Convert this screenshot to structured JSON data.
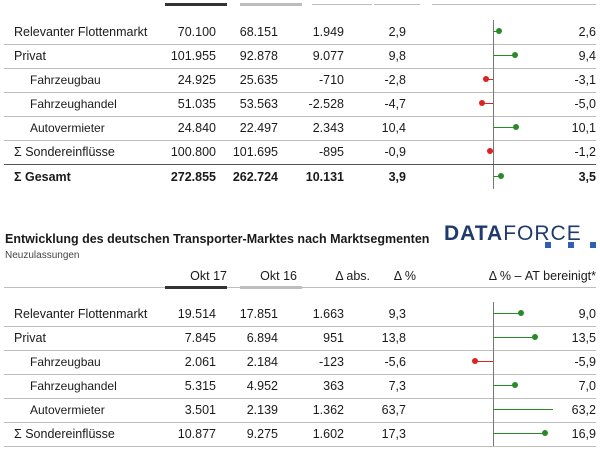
{
  "colors": {
    "positive": "#2a8a2a",
    "negative": "#dd2222",
    "rule_dark": "#333333",
    "rule_light": "#bdbdbd",
    "brand": "#1f3a6b"
  },
  "table1": {
    "rows": [
      {
        "label": "Relevanter Flottenmarkt",
        "indent": false,
        "bold": false,
        "v1": "70.100",
        "v2": "68.151",
        "abs": "1.949",
        "pct": "2,9",
        "adj": "2,6",
        "adj_val": 2.6,
        "pct_val": 2.9
      },
      {
        "label": "Privat",
        "indent": false,
        "bold": false,
        "v1": "101.955",
        "v2": "92.878",
        "abs": "9.077",
        "pct": "9,8",
        "adj": "9,4",
        "adj_val": 9.4,
        "pct_val": 9.8
      },
      {
        "label": "Fahrzeugbau",
        "indent": true,
        "bold": false,
        "v1": "24.925",
        "v2": "25.635",
        "abs": "-710",
        "pct": "-2,8",
        "adj": "-3,1",
        "adj_val": -3.1,
        "pct_val": -2.8
      },
      {
        "label": "Fahrzeughandel",
        "indent": true,
        "bold": false,
        "v1": "51.035",
        "v2": "53.563",
        "abs": "-2.528",
        "pct": "-4,7",
        "adj": "-5,0",
        "adj_val": -5.0,
        "pct_val": -4.7
      },
      {
        "label": "Autovermieter",
        "indent": true,
        "bold": false,
        "v1": "24.840",
        "v2": "22.497",
        "abs": "2.343",
        "pct": "10,4",
        "adj": "10,1",
        "adj_val": 10.1,
        "pct_val": 10.4
      },
      {
        "label": "Σ Sondereinflüsse",
        "indent": false,
        "bold": false,
        "v1": "100.800",
        "v2": "101.695",
        "abs": "-895",
        "pct": "-0,9",
        "adj": "-1,2",
        "adj_val": -1.2,
        "pct_val": -0.9
      },
      {
        "label": "Σ Gesamt",
        "indent": false,
        "bold": true,
        "v1": "272.855",
        "v2": "262.724",
        "abs": "10.131",
        "pct": "3,9",
        "adj": "3,5",
        "adj_val": 3.5,
        "pct_val": 3.9
      }
    ]
  },
  "section2": {
    "title": "Entwicklung des deutschen Transporter-Marktes nach Marktsegmenten",
    "subtitle": "Neuzulassungen",
    "logo_text_bold": "DATA",
    "logo_text_light": "FORCE",
    "headers": {
      "v1": "Okt 17",
      "v2": "Okt 16",
      "abs": "Δ abs.",
      "pct": "Δ %",
      "adj": "Δ % – AT bereinigt*"
    },
    "rows": [
      {
        "label": "Relevanter Flottenmarkt",
        "indent": false,
        "bold": false,
        "v1": "19.514",
        "v2": "17.851",
        "abs": "1.663",
        "pct": "9,3",
        "adj": "9,0",
        "adj_val": 9.0,
        "pct_val": 9.3
      },
      {
        "label": "Privat",
        "indent": false,
        "bold": false,
        "v1": "7.845",
        "v2": "6.894",
        "abs": "951",
        "pct": "13,8",
        "adj": "13,5",
        "adj_val": 13.5,
        "pct_val": 13.8
      },
      {
        "label": "Fahrzeugbau",
        "indent": true,
        "bold": false,
        "v1": "2.061",
        "v2": "2.184",
        "abs": "-123",
        "pct": "-5,6",
        "adj": "-5,9",
        "adj_val": -5.9,
        "pct_val": -5.6
      },
      {
        "label": "Fahrzeughandel",
        "indent": true,
        "bold": false,
        "v1": "5.315",
        "v2": "4.952",
        "abs": "363",
        "pct": "7,3",
        "adj": "7,0",
        "adj_val": 7.0,
        "pct_val": 7.3
      },
      {
        "label": "Autovermieter",
        "indent": true,
        "bold": false,
        "v1": "3.501",
        "v2": "2.139",
        "abs": "1.362",
        "pct": "63,7",
        "adj": "63,2",
        "adj_val": 63.2,
        "pct_val": 63.7
      },
      {
        "label": "Σ Sondereinflüsse",
        "indent": false,
        "bold": false,
        "v1": "10.877",
        "v2": "9.275",
        "abs": "1.602",
        "pct": "17,3",
        "adj": "16,9",
        "adj_val": 16.9,
        "pct_val": 17.3
      }
    ]
  }
}
